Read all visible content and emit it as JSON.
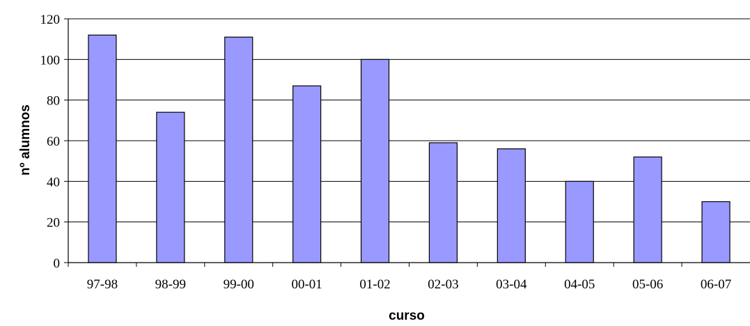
{
  "chart_data": {
    "type": "bar",
    "title": "",
    "xlabel": "curso",
    "ylabel": "nº alumnos",
    "categories": [
      "97-98",
      "98-99",
      "99-00",
      "00-01",
      "01-02",
      "02-03",
      "03-04",
      "04-05",
      "05-06",
      "06-07"
    ],
    "values": [
      112,
      74,
      111,
      87,
      100,
      59,
      56,
      40,
      52,
      30
    ],
    "ylim": [
      0,
      120
    ],
    "yticks": [
      0,
      20,
      40,
      60,
      80,
      100,
      120
    ],
    "grid": true,
    "legend": "none",
    "colors": {
      "bar_fill": "#9999ff",
      "bar_stroke": "#000000",
      "gridline": "#000000",
      "axis": "#000000"
    }
  }
}
